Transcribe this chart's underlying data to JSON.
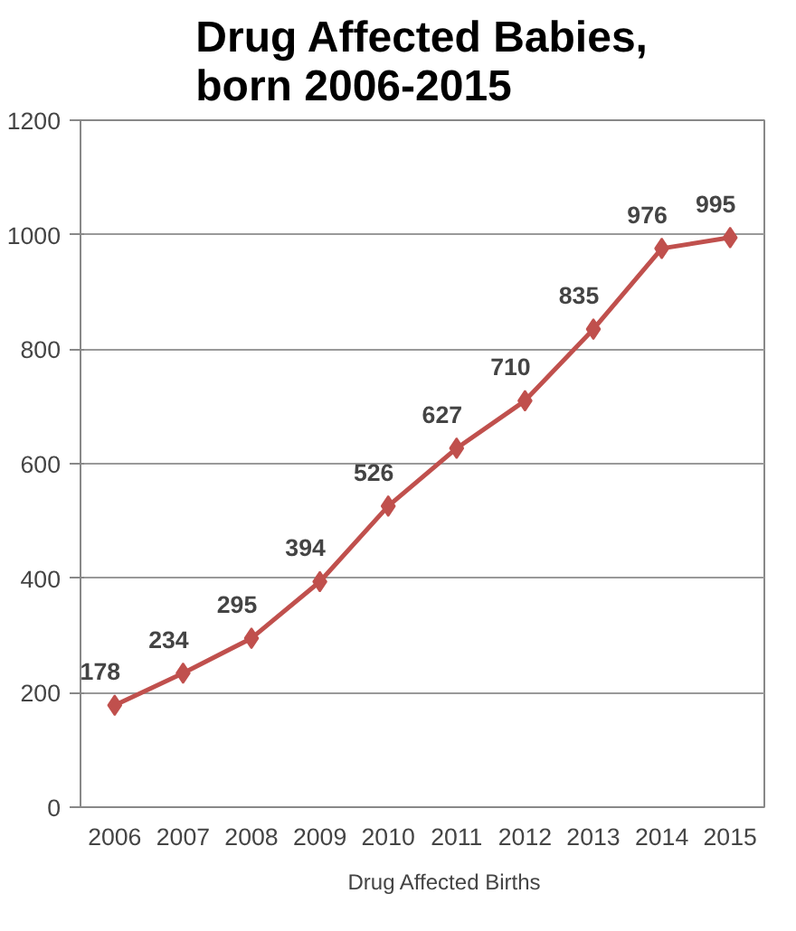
{
  "chart_data": {
    "type": "line",
    "title": "Drug Affected Babies,\nborn 2006-2015",
    "categories": [
      "2006",
      "2007",
      "2008",
      "2009",
      "2010",
      "2011",
      "2012",
      "2013",
      "2014",
      "2015"
    ],
    "series": [
      {
        "name": "Drug Affected Births",
        "color": "#c0504d",
        "values": [
          178,
          234,
          295,
          394,
          526,
          627,
          710,
          835,
          976,
          995
        ]
      }
    ],
    "ylim": [
      0,
      1200
    ],
    "yticks": [
      0,
      200,
      400,
      600,
      800,
      1000,
      1200
    ],
    "grid": "y",
    "legend": "bottom",
    "marker": "diamond",
    "line_style": "solid",
    "data_labels": true
  }
}
